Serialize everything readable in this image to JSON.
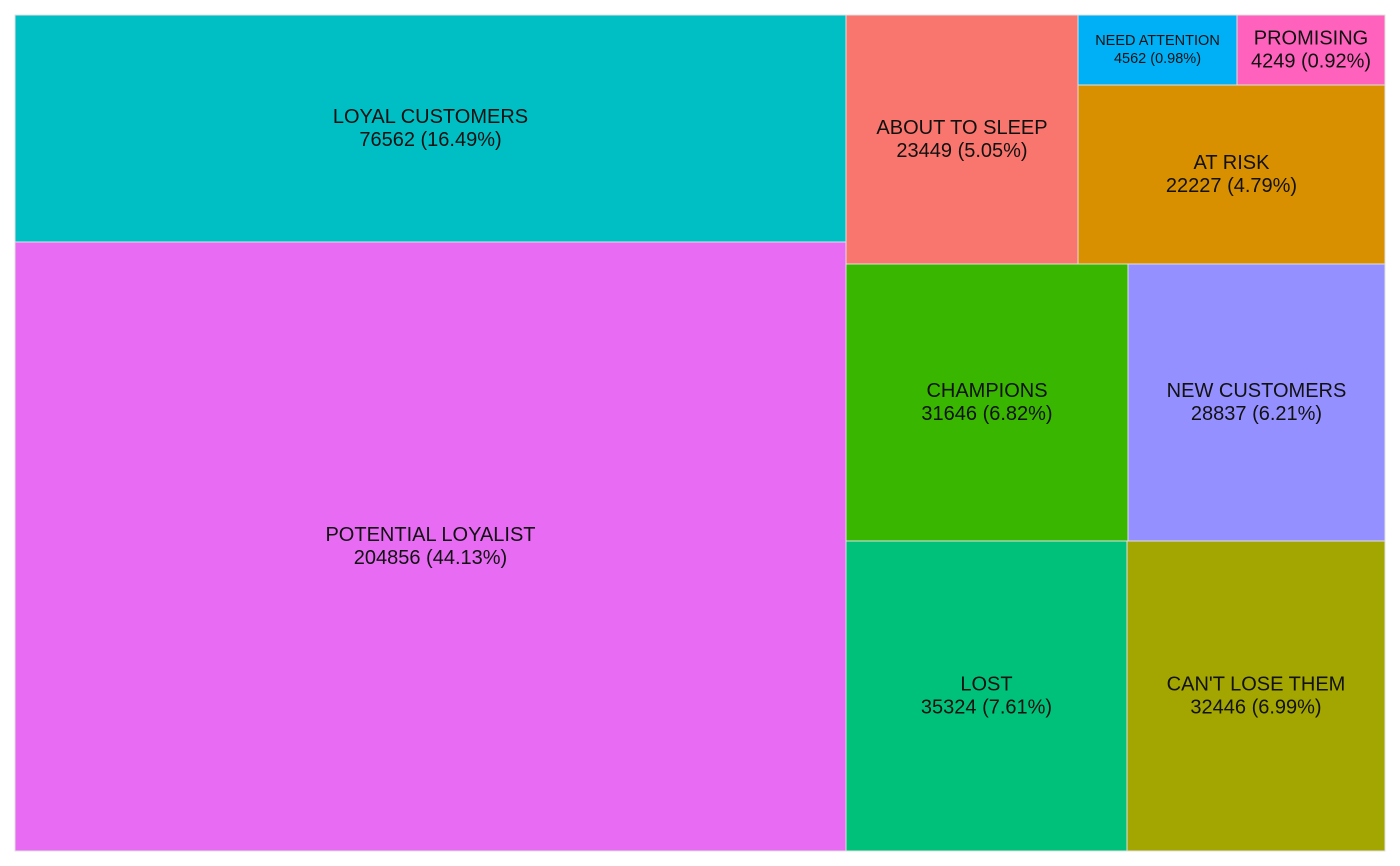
{
  "chart_data": {
    "type": "treemap",
    "title": "",
    "segments": [
      {
        "name": "POTENTIAL LOYALIST",
        "value": 204856,
        "percent": "44.13%",
        "color": "#E76BF3"
      },
      {
        "name": "LOYAL CUSTOMERS",
        "value": 76562,
        "percent": "16.49%",
        "color": "#00BFC4"
      },
      {
        "name": "LOST",
        "value": 35324,
        "percent": "7.61%",
        "color": "#00C17A"
      },
      {
        "name": "CAN'T LOSE THEM",
        "value": 32446,
        "percent": "6.99%",
        "color": "#A3A500"
      },
      {
        "name": "CHAMPIONS",
        "value": 31646,
        "percent": "6.82%",
        "color": "#39B600"
      },
      {
        "name": "NEW CUSTOMERS",
        "value": 28837,
        "percent": "6.21%",
        "color": "#9590FF"
      },
      {
        "name": "ABOUT TO SLEEP",
        "value": 23449,
        "percent": "5.05%",
        "color": "#F8766D"
      },
      {
        "name": "AT RISK",
        "value": 22227,
        "percent": "4.79%",
        "color": "#D89000"
      },
      {
        "name": "NEED ATTENTION",
        "value": 4562,
        "percent": "0.98%",
        "color": "#00B0F6"
      },
      {
        "name": "PROMISING",
        "value": 4249,
        "percent": "0.92%",
        "color": "#FF62BC"
      }
    ]
  }
}
